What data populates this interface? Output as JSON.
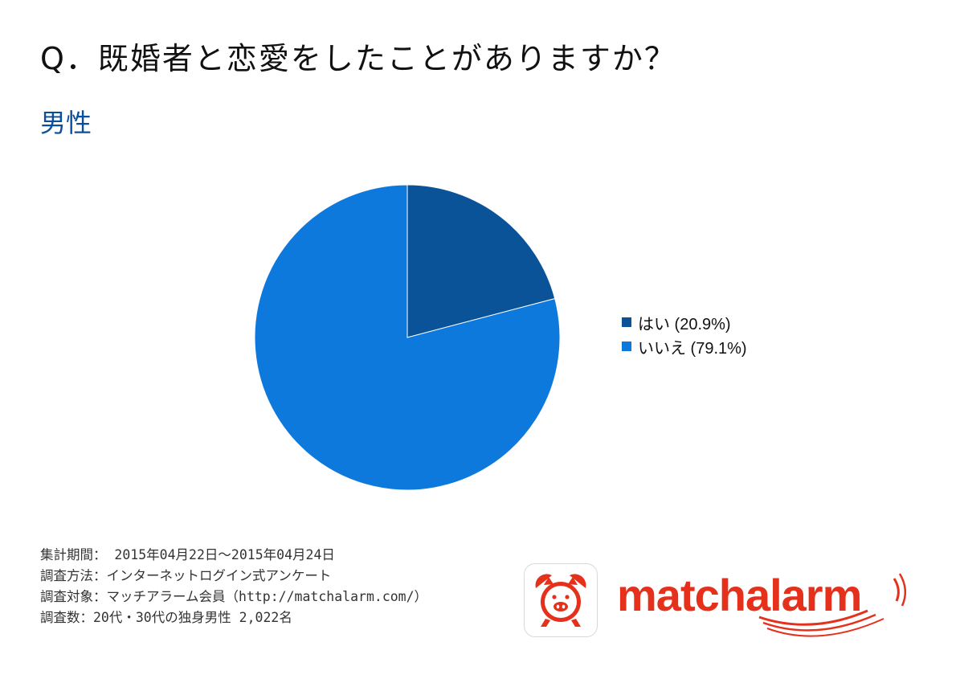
{
  "question": "Q．既婚者と恋愛をしたことがありますか？",
  "subtitle": "男性",
  "colors": {
    "subtitle": "#0a4f9a",
    "series_yes": "#0b5399",
    "series_no": "#0e79dd",
    "brand_red": "#e5311c"
  },
  "chart_data": {
    "type": "pie",
    "title": "",
    "slices": [
      {
        "label": "はい (20.9%)",
        "category": "はい",
        "value": 20.9,
        "color": "#0b5399"
      },
      {
        "label": "いいえ (79.1%)",
        "category": "いいえ",
        "value": 79.1,
        "color": "#0e79dd"
      }
    ],
    "legend_position": "right",
    "start_angle": "top",
    "direction": "clockwise"
  },
  "footer": {
    "lines": [
      "集計期間： 2015年04月22日～2015年04月24日",
      "調査方法：インターネットログイン式アンケート",
      "調査対象：マッチアラーム会員（http://matchalarm.com/）",
      "調査数：20代・30代の独身男性 2,022名"
    ]
  },
  "logo": {
    "wordmark": "matchalarm",
    "icon": "alarm-clock-pig-icon"
  }
}
